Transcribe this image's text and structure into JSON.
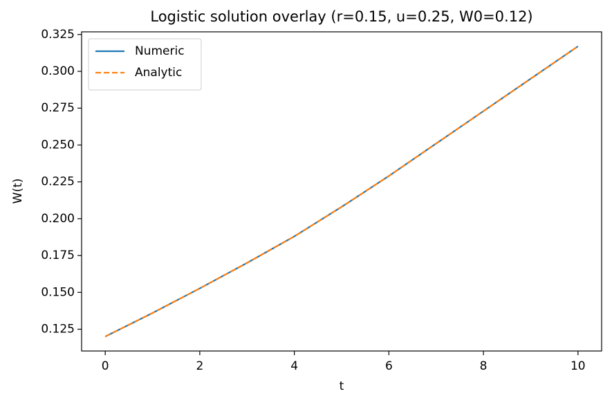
{
  "chart_data": {
    "type": "line",
    "title": "Logistic solution overlay (r=0.15, u=0.25, W0=0.12)",
    "xlabel": "t",
    "ylabel": "W(t)",
    "x": [
      0,
      1,
      2,
      3,
      4,
      5,
      6,
      7,
      8,
      9,
      10
    ],
    "series": [
      {
        "name": "Numeric",
        "color": "#1f77b4",
        "dash": false,
        "values": [
          0.12,
          0.136,
          0.1527,
          0.17,
          0.188,
          0.208,
          0.229,
          0.251,
          0.273,
          0.295,
          0.317
        ]
      },
      {
        "name": "Analytic",
        "color": "#ff7f0e",
        "dash": true,
        "values": [
          0.12,
          0.136,
          0.1527,
          0.17,
          0.188,
          0.208,
          0.229,
          0.251,
          0.273,
          0.295,
          0.317
        ]
      }
    ],
    "xlim": [
      -0.5,
      10.5
    ],
    "xticks": [
      0,
      2,
      4,
      6,
      8,
      10
    ],
    "ylim": [
      0.1102,
      0.3268
    ],
    "yticks": [
      {
        "value": 0.125,
        "label": "0.125"
      },
      {
        "value": 0.15,
        "label": "0.150"
      },
      {
        "value": 0.175,
        "label": "0.175"
      },
      {
        "value": 0.2,
        "label": "0.200"
      },
      {
        "value": 0.225,
        "label": "0.225"
      },
      {
        "value": 0.25,
        "label": "0.250"
      },
      {
        "value": 0.275,
        "label": "0.275"
      },
      {
        "value": 0.3,
        "label": "0.300"
      },
      {
        "value": 0.325,
        "label": "0.325"
      }
    ],
    "legend": "upper left"
  }
}
